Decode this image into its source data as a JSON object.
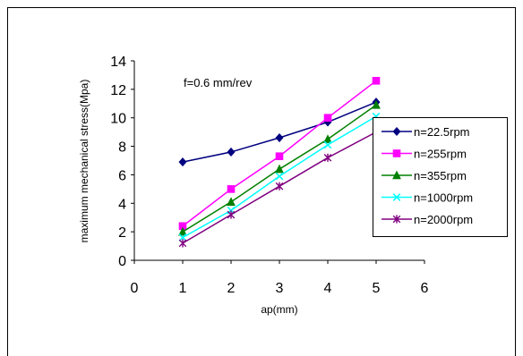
{
  "chart_data": {
    "type": "line",
    "title": "",
    "annotation": "f=0.6 mm/rev",
    "xlabel": "ap(mm)",
    "ylabel": "maximum mechanical stress(Mpa)",
    "xlim": [
      0,
      6
    ],
    "ylim": [
      0,
      14
    ],
    "xticks": [
      "0",
      "1",
      "2",
      "3",
      "4",
      "5",
      "6"
    ],
    "yticks": [
      "0",
      "2",
      "4",
      "6",
      "8",
      "10",
      "12",
      "14"
    ],
    "grid": false,
    "legend_position": "right",
    "x": [
      1,
      2,
      3,
      4,
      5
    ],
    "series": [
      {
        "name": "n=22.5rpm",
        "values": [
          6.9,
          7.6,
          8.6,
          9.7,
          11.1
        ],
        "color": "#000080",
        "marker": "diamond"
      },
      {
        "name": "n=255rpm",
        "values": [
          2.4,
          5.0,
          7.3,
          10.0,
          12.6
        ],
        "color": "#ff00ff",
        "marker": "square"
      },
      {
        "name": "n=355rpm",
        "values": [
          2.0,
          4.1,
          6.4,
          8.5,
          10.9
        ],
        "color": "#008000",
        "marker": "triangle"
      },
      {
        "name": "n=1000rpm",
        "values": [
          1.6,
          3.5,
          5.9,
          8.1,
          10.1
        ],
        "color": "#00ffff",
        "marker": "x"
      },
      {
        "name": "n=2000rpm",
        "values": [
          1.2,
          3.2,
          5.2,
          7.2,
          9.0
        ],
        "color": "#800080",
        "marker": "star"
      }
    ]
  }
}
